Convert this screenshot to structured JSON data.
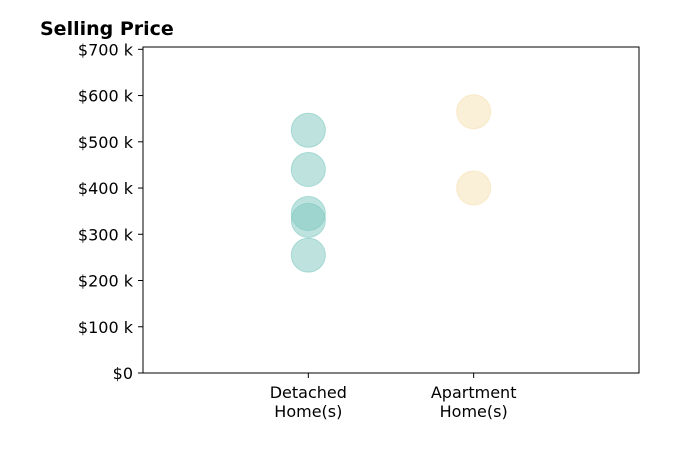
{
  "chart_data": {
    "type": "scatter",
    "title": "Selling Price",
    "xlabel": "",
    "ylabel": "",
    "categories": [
      "Detached\nHome(s)",
      "Apartment\nHome(s)"
    ],
    "xlim": [
      0,
      3
    ],
    "ylim": [
      0,
      705000
    ],
    "yticks": [
      0,
      100000,
      200000,
      300000,
      400000,
      500000,
      600000,
      700000
    ],
    "ytick_labels": [
      "$0",
      "$100 k",
      "$200 k",
      "$300 k",
      "$400 k",
      "$500 k",
      "$600 k",
      "$700 k"
    ],
    "grid": false,
    "series": [
      {
        "category_index": 0,
        "color": "#7ec8c0",
        "values": [
          525000,
          440000,
          345000,
          330000,
          255000
        ]
      },
      {
        "category_index": 1,
        "color": "#f5dfb0",
        "values": [
          565000,
          400000
        ]
      }
    ]
  }
}
